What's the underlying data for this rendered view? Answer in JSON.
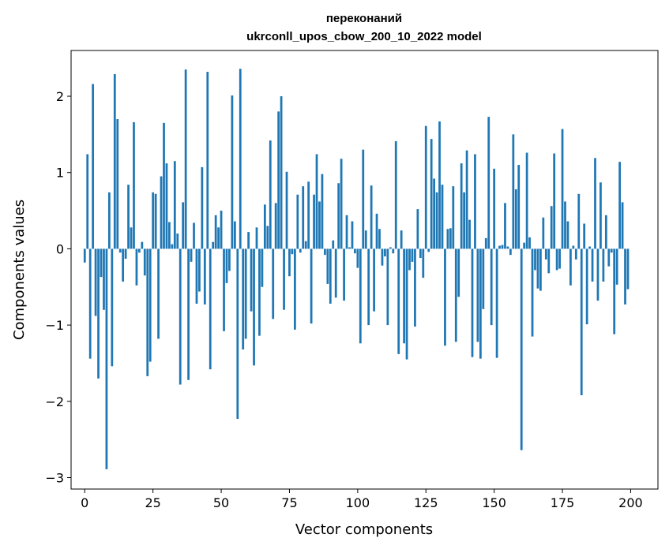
{
  "chart_data": {
    "type": "bar",
    "title_line1": "переконаний",
    "title_line2": "ukrconll_upos_cbow_200_10_2022 model",
    "xlabel": "Vector components",
    "ylabel": "Components values",
    "xlim": [
      -5,
      210
    ],
    "ylim": [
      -3.15,
      2.6
    ],
    "xticks": [
      0,
      25,
      50,
      75,
      100,
      125,
      150,
      175,
      200
    ],
    "xtick_labels": [
      "0",
      "25",
      "50",
      "75",
      "100",
      "125",
      "150",
      "175",
      "200"
    ],
    "yticks": [
      -3,
      -2,
      -1,
      0,
      1,
      2
    ],
    "ytick_labels": [
      "−3",
      "−2",
      "−1",
      "0",
      "1",
      "2"
    ],
    "bar_color": "#1f77b4",
    "values": [
      -0.18,
      1.24,
      -1.44,
      2.16,
      -0.88,
      -1.7,
      -0.37,
      -0.8,
      -2.89,
      0.74,
      -1.54,
      2.29,
      1.7,
      -0.05,
      -0.43,
      -0.13,
      0.84,
      0.28,
      1.66,
      -0.48,
      -0.05,
      0.09,
      -0.35,
      -1.67,
      -1.48,
      0.74,
      0.72,
      -1.18,
      0.95,
      1.65,
      1.12,
      0.35,
      0.06,
      1.15,
      0.2,
      -1.78,
      0.61,
      2.35,
      -1.72,
      -0.17,
      0.34,
      -0.72,
      -0.56,
      1.07,
      -0.73,
      2.32,
      -1.58,
      0.09,
      0.44,
      0.28,
      0.5,
      -1.08,
      -0.45,
      -0.29,
      2.01,
      0.36,
      -2.23,
      2.36,
      -1.32,
      -1.18,
      0.22,
      -0.82,
      -1.53,
      0.28,
      -1.14,
      -0.5,
      0.58,
      0.3,
      1.42,
      -0.92,
      0.6,
      1.8,
      2.0,
      -0.8,
      1.01,
      -0.36,
      -0.07,
      -1.06,
      0.71,
      -0.05,
      0.82,
      0.1,
      0.88,
      -0.98,
      0.71,
      1.24,
      0.62,
      0.98,
      -0.08,
      -0.46,
      -0.72,
      0.11,
      -0.64,
      0.86,
      1.18,
      -0.68,
      0.44,
      0.02,
      0.36,
      -0.06,
      -0.25,
      -1.24,
      1.3,
      0.24,
      -1.0,
      0.83,
      -0.82,
      0.46,
      0.26,
      -0.22,
      -0.1,
      -1.0,
      0.02,
      -0.06,
      1.41,
      -1.38,
      0.24,
      -1.24,
      -1.45,
      -0.28,
      -0.17,
      -1.02,
      0.52,
      -0.12,
      -0.38,
      1.61,
      -0.04,
      1.44,
      0.92,
      0.74,
      1.67,
      0.84,
      -1.27,
      0.26,
      0.27,
      0.82,
      -1.22,
      -0.63,
      1.12,
      0.74,
      1.29,
      0.38,
      -1.42,
      1.24,
      -1.22,
      -1.44,
      -0.79,
      0.14,
      1.73,
      -1.0,
      1.05,
      -1.43,
      0.04,
      0.05,
      0.6,
      0.03,
      -0.08,
      1.5,
      0.78,
      1.1,
      -2.64,
      0.08,
      1.26,
      0.15,
      -1.15,
      -0.28,
      -0.52,
      -0.55,
      0.41,
      -0.14,
      -0.32,
      0.56,
      1.25,
      -0.28,
      -0.26,
      1.57,
      0.62,
      0.36,
      -0.48,
      0.04,
      -0.14,
      0.72,
      -1.92,
      0.33,
      -0.99,
      0.03,
      -0.43,
      1.19,
      -0.68,
      0.87,
      -0.43,
      0.44,
      -0.23,
      -0.05,
      -1.12,
      -0.47,
      1.14,
      0.61,
      -0.73,
      -0.53
    ]
  }
}
